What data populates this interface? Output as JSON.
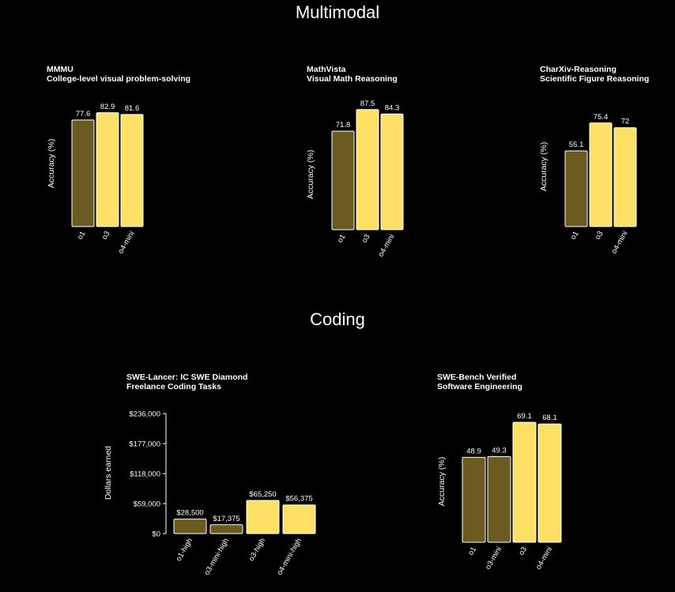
{
  "sections": {
    "multimodal": "Multimodal",
    "coding": "Coding"
  },
  "colors": {
    "background": "#000000",
    "dark_bar": "#6b5b20",
    "bright_bar": "#ffe066",
    "bar_outline": "#ffffff",
    "text": "#ffffff"
  },
  "chart_data": [
    {
      "type": "bar",
      "title": "MMMU",
      "subtitle": "College-level visual problem-solving",
      "ylabel": "Accuracy (%)",
      "categories": [
        "o1",
        "o3",
        "o4-mini"
      ],
      "values": [
        77.6,
        82.9,
        81.6
      ],
      "value_labels": [
        "77.6",
        "82.9",
        "81.6"
      ],
      "bar_styles": [
        "dark",
        "bright",
        "bright"
      ]
    },
    {
      "type": "bar",
      "title": "MathVista",
      "subtitle": "Visual Math Reasoning",
      "ylabel": "Accuracy (%)",
      "categories": [
        "o1",
        "o3",
        "o4-mini"
      ],
      "values": [
        71.8,
        87.5,
        84.3
      ],
      "value_labels": [
        "71.8",
        "87.5",
        "84.3"
      ],
      "bar_styles": [
        "dark",
        "bright",
        "bright"
      ]
    },
    {
      "type": "bar",
      "title": "CharXiv-Reasoning",
      "subtitle": "Scientific Figure Reasoning",
      "ylabel": "Accuracy (%)",
      "categories": [
        "o1",
        "o3",
        "o4-mini"
      ],
      "values": [
        55.1,
        75.4,
        72
      ],
      "value_labels": [
        "55.1",
        "75.4",
        "72"
      ],
      "bar_styles": [
        "dark",
        "bright",
        "bright"
      ]
    },
    {
      "type": "bar",
      "title": "SWE-Lancer: IC SWE Diamond",
      "subtitle": "Freelance Coding Tasks",
      "ylabel": "Dollars earned",
      "categories": [
        "o1-high",
        "o3-mini-high",
        "o3-high",
        "o4-mini-high"
      ],
      "values": [
        28500,
        17375,
        65250,
        56375
      ],
      "value_labels": [
        "$28,500",
        "$17,375",
        "$65,250",
        "$56,375"
      ],
      "bar_styles": [
        "dark",
        "dark",
        "bright",
        "bright"
      ],
      "ylim": [
        0,
        236000
      ],
      "yticks": [
        0,
        59000,
        118000,
        177000,
        236000
      ],
      "ytick_labels": [
        "$0",
        "$59,000",
        "$118,000",
        "$177,000",
        "$236,000"
      ]
    },
    {
      "type": "bar",
      "title": "SWE-Bench Verified",
      "subtitle": "Software Engineering",
      "ylabel": "Accuracy (%)",
      "categories": [
        "o1",
        "o3-mini",
        "o3",
        "o4-mini"
      ],
      "values": [
        48.9,
        49.3,
        69.1,
        68.1
      ],
      "value_labels": [
        "48.9",
        "49.3",
        "69.1",
        "68.1"
      ],
      "bar_styles": [
        "dark",
        "dark",
        "bright",
        "bright"
      ]
    }
  ]
}
